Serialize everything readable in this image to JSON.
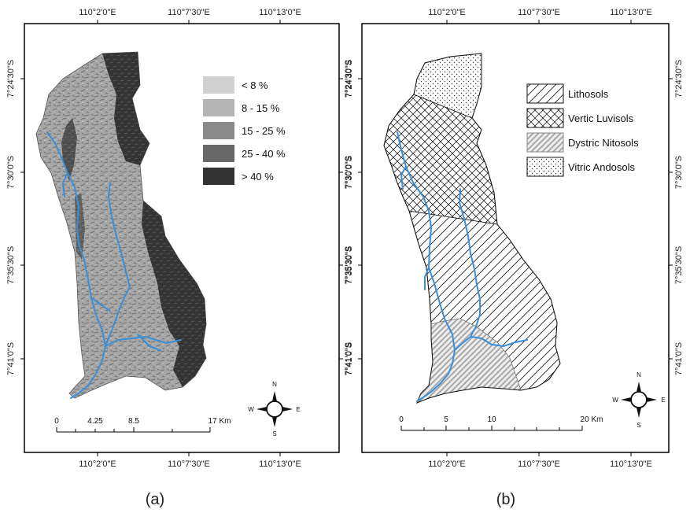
{
  "panel_a": {
    "caption": "(a)",
    "x_ticks_top": [
      "110°2'0\"E",
      "110°7'30\"E",
      "110°13'0\"E"
    ],
    "x_ticks_bottom": [
      "110°2'0\"E",
      "110°7'30\"E",
      "110°13'0\"E"
    ],
    "y_ticks_left": [
      "7°24'30\"S",
      "7°30'0\"S",
      "7°35'30\"S",
      "7°41'0\"S"
    ],
    "y_ticks_right": [
      "7°24'30\"S",
      "7°30'0\"S",
      "7°35'30\"S",
      "7°41'0\"S"
    ],
    "legend": [
      {
        "label": "< 8 %",
        "color": "#d0d0d0"
      },
      {
        "label": "8 - 15 %",
        "color": "#b4b4b4"
      },
      {
        "label": "15 - 25 %",
        "color": "#8a8a8a"
      },
      {
        "label": "25 - 40 %",
        "color": "#686868"
      },
      {
        "label": "> 40 %",
        "color": "#333333"
      }
    ],
    "scale_labels": [
      "0",
      "4.25",
      "8.5",
      "17 Km"
    ],
    "compass": {
      "n": "N",
      "s": "S",
      "e": "E",
      "w": "W"
    }
  },
  "panel_b": {
    "caption": "(b)",
    "x_ticks_top": [
      "110°2'0\"E",
      "110°7'30\"E",
      "110°13'0\"E"
    ],
    "x_ticks_bottom": [
      "110°2'0\"E",
      "110°7'30\"E",
      "110°13'0\"E"
    ],
    "y_ticks_left": [
      "7°24'30\"S",
      "7°30'0\"S",
      "7°35'30\"S",
      "7°41'0\"S"
    ],
    "y_ticks_right": [
      "7°24'30\"S",
      "7°30'0\"S",
      "7°35'30\"S",
      "7°41'0\"S"
    ],
    "legend": [
      {
        "label": "Lithosols",
        "pattern": "diagonal-hatch"
      },
      {
        "label": "Vertic Luvisols",
        "pattern": "cross-hatch"
      },
      {
        "label": "Dystric Nitosols",
        "pattern": "grey-diagonal-hatch"
      },
      {
        "label": "Vitric Andosols",
        "pattern": "dots"
      }
    ],
    "scale_labels": [
      "0",
      "5",
      "10",
      "20 Km"
    ],
    "compass": {
      "n": "N",
      "s": "S",
      "e": "E",
      "w": "W"
    }
  },
  "colors": {
    "river": "#3b8fd9",
    "frame": "#000000"
  }
}
